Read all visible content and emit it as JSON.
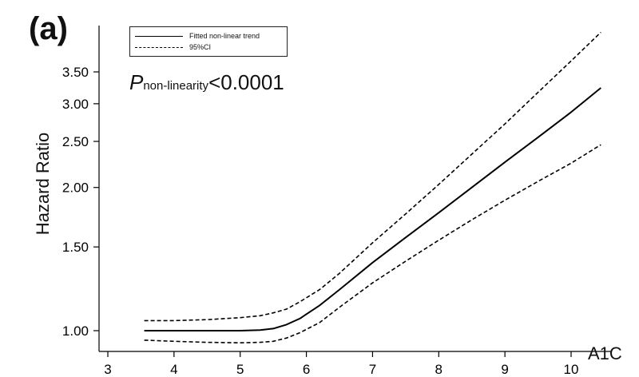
{
  "panel_label": "(a)",
  "p_value": {
    "symbol": "P",
    "subscript": "non-linearity",
    "text": "<0.0001"
  },
  "chart_data": {
    "type": "line",
    "title": "",
    "xlabel": "A1C",
    "ylabel": "Hazard Ratio",
    "xlim": [
      3,
      10.8
    ],
    "ylim": [
      0.93,
      4.3
    ],
    "y_scale": "log",
    "x_ticks": [
      3,
      4,
      5,
      6,
      7,
      8,
      9,
      10
    ],
    "y_ticks": [
      1.0,
      1.5,
      2.0,
      2.5,
      3.0,
      3.5
    ],
    "y_tick_labels": [
      "1.00",
      "1.50",
      "2.00",
      "2.50",
      "3.00",
      "3.50"
    ],
    "grid": false,
    "legend_position": "top-left",
    "legend": [
      "Fitted non-linear trend",
      "95%CI"
    ],
    "series": [
      {
        "name": "Fitted non-linear trend",
        "style": "solid",
        "x": [
          3.55,
          4.0,
          4.5,
          5.0,
          5.3,
          5.5,
          5.7,
          5.9,
          6.2,
          6.5,
          7.0,
          7.5,
          8.0,
          8.5,
          9.0,
          9.5,
          10.0,
          10.45
        ],
        "y": [
          1.0,
          1.0,
          1.0,
          1.0,
          1.003,
          1.01,
          1.03,
          1.06,
          1.13,
          1.22,
          1.39,
          1.57,
          1.77,
          2.0,
          2.26,
          2.55,
          2.88,
          3.24
        ]
      },
      {
        "name": "95%CI upper",
        "style": "dashed",
        "x": [
          3.55,
          4.0,
          4.5,
          5.0,
          5.3,
          5.5,
          5.7,
          5.9,
          6.2,
          6.5,
          7.0,
          7.5,
          8.0,
          8.5,
          9.0,
          9.5,
          10.0,
          10.45
        ],
        "y": [
          1.05,
          1.05,
          1.055,
          1.065,
          1.075,
          1.09,
          1.11,
          1.15,
          1.22,
          1.32,
          1.53,
          1.76,
          2.03,
          2.35,
          2.72,
          3.17,
          3.69,
          4.24
        ]
      },
      {
        "name": "95%CI lower",
        "style": "dashed",
        "x": [
          3.55,
          4.0,
          4.5,
          5.0,
          5.3,
          5.5,
          5.7,
          5.9,
          6.2,
          6.5,
          7.0,
          7.5,
          8.0,
          8.5,
          9.0,
          9.5,
          10.0,
          10.45
        ],
        "y": [
          0.955,
          0.95,
          0.945,
          0.943,
          0.945,
          0.95,
          0.965,
          0.99,
          1.04,
          1.12,
          1.26,
          1.4,
          1.55,
          1.71,
          1.88,
          2.06,
          2.25,
          2.46
        ]
      }
    ]
  }
}
